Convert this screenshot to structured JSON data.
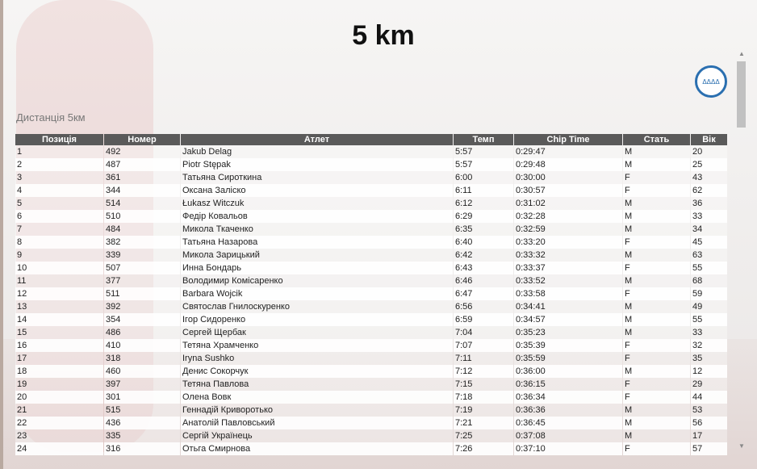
{
  "title": "5 km",
  "subtitle": "Дистанція 5км",
  "logo_text": "ΔΔΔΔ",
  "columns": [
    "Позиція",
    "Номер",
    "Атлет",
    "Темп",
    "Chip Time",
    "Стать",
    "Вік"
  ],
  "rows": [
    [
      "1",
      "492",
      "Jakub Delag",
      "5:57",
      "0:29:47",
      "M",
      "20"
    ],
    [
      "2",
      "487",
      "Piotr Stępak",
      "5:57",
      "0:29:48",
      "M",
      "25"
    ],
    [
      "3",
      "361",
      "Татьяна Сироткина",
      "6:00",
      "0:30:00",
      "F",
      "43"
    ],
    [
      "4",
      "344",
      "Оксана Заліско",
      "6:11",
      "0:30:57",
      "F",
      "62"
    ],
    [
      "5",
      "514",
      "Łukasz Witczuk",
      "6:12",
      "0:31:02",
      "M",
      "36"
    ],
    [
      "6",
      "510",
      "Федір Ковальов",
      "6:29",
      "0:32:28",
      "M",
      "33"
    ],
    [
      "7",
      "484",
      "Микола Ткаченко",
      "6:35",
      "0:32:59",
      "M",
      "34"
    ],
    [
      "8",
      "382",
      "Татьяна Назарова",
      "6:40",
      "0:33:20",
      "F",
      "45"
    ],
    [
      "9",
      "339",
      "Микола Зарицький",
      "6:42",
      "0:33:32",
      "M",
      "63"
    ],
    [
      "10",
      "507",
      "Инна Бондарь",
      "6:43",
      "0:33:37",
      "F",
      "55"
    ],
    [
      "11",
      "377",
      "Володимир Комісаренко",
      "6:46",
      "0:33:52",
      "M",
      "68"
    ],
    [
      "12",
      "511",
      "Barbara Wojcik",
      "6:47",
      "0:33:58",
      "F",
      "59"
    ],
    [
      "13",
      "392",
      "Святослав Гнилоскуренко",
      "6:56",
      "0:34:41",
      "M",
      "49"
    ],
    [
      "14",
      "354",
      "Ігор Сидоренко",
      "6:59",
      "0:34:57",
      "M",
      "55"
    ],
    [
      "15",
      "486",
      "Сергей Щербак",
      "7:04",
      "0:35:23",
      "M",
      "33"
    ],
    [
      "16",
      "410",
      "Тетяна Храмченко",
      "7:07",
      "0:35:39",
      "F",
      "32"
    ],
    [
      "17",
      "318",
      "Iryna Sushko",
      "7:11",
      "0:35:59",
      "F",
      "35"
    ],
    [
      "18",
      "460",
      "Денис Сокорчук",
      "7:12",
      "0:36:00",
      "M",
      "12"
    ],
    [
      "19",
      "397",
      "Тетяна Павлова",
      "7:15",
      "0:36:15",
      "F",
      "29"
    ],
    [
      "20",
      "301",
      "Олена Вовк",
      "7:18",
      "0:36:34",
      "F",
      "44"
    ],
    [
      "21",
      "515",
      "Геннадій Криворотько",
      "7:19",
      "0:36:36",
      "M",
      "53"
    ],
    [
      "22",
      "436",
      "Анатолій Павловський",
      "7:21",
      "0:36:45",
      "M",
      "56"
    ],
    [
      "23",
      "335",
      "Сергій Українець",
      "7:25",
      "0:37:08",
      "M",
      "17"
    ],
    [
      "24",
      "316",
      "Отьга Смирнова",
      "7:26",
      "0:37:10",
      "F",
      "57"
    ]
  ]
}
